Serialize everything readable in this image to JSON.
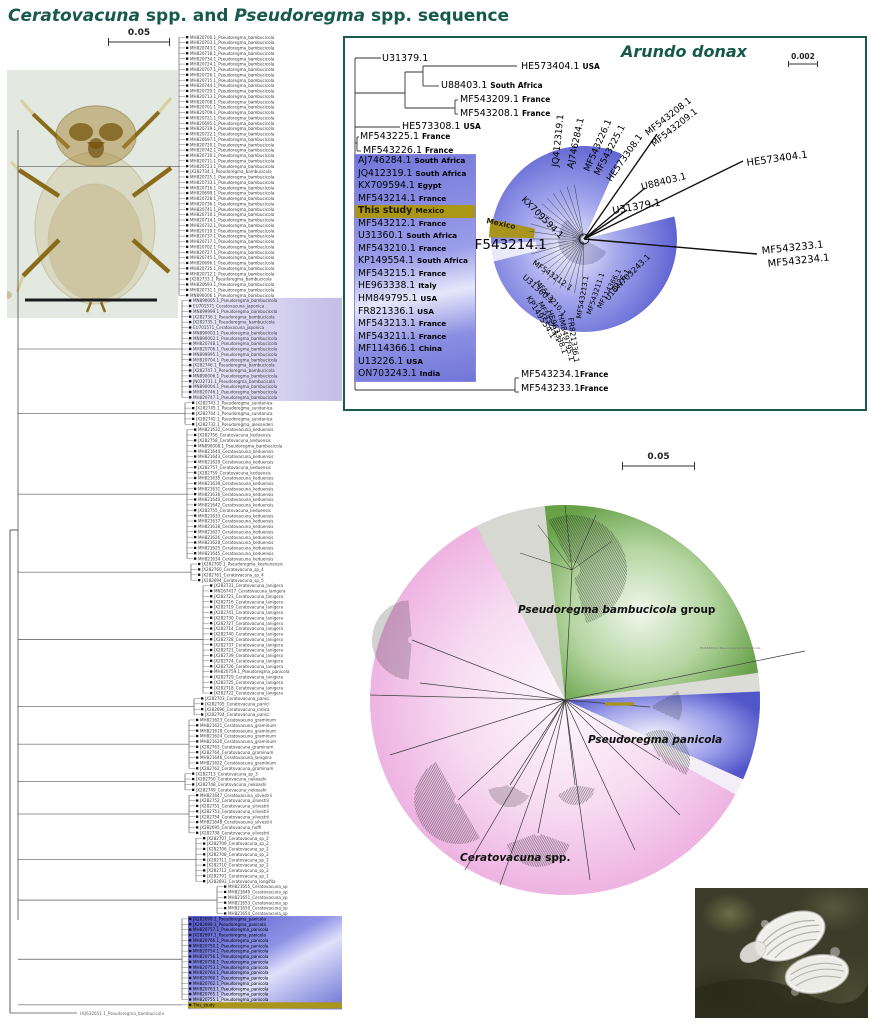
{
  "title": {
    "part1": "Ceratovacuna",
    "part2": " spp. and ",
    "part3": "Pseudoregma",
    "part4": " spp. sequence"
  },
  "colors": {
    "accent_teal": "#175a4c",
    "highlight_blue": "#5a5fd0",
    "highlight_olive": "#a9951b",
    "lavender": "#c7c1e6",
    "pink": "#f2c4e6",
    "green": "#6aa24c"
  },
  "main_tree": {
    "scale_label": "0.05",
    "outgroup": "HQ632651.1_Pseudoregma_bambucicola",
    "sections": [
      {
        "highlight": "none",
        "labels": [
          "MH820700.1_Pseudoregma_bambucicola",
          "MH820703.1_Pseudoregma_bambucicola",
          "MH820743.1_Pseudoregma_bambucicola",
          "MH820718.1_Pseudoregma_bambucicola",
          "MH820734.1_Pseudoregma_bambucicola",
          "MH820724.1_Pseudoregma_bambucicola",
          "MH820707.1_Pseudoregma_bambucicola",
          "MH820726.1_Pseudoregma_bambucicola",
          "MH820715.1_Pseudoregma_bambucicola",
          "MH820744.1_Pseudoregma_bambucicola",
          "MH820729.1_Pseudoregma_bambucicola",
          "MH820713.1_Pseudoregma_bambucicola",
          "MH820708.1_Pseudoregma_bambucicola",
          "MH820701.1_Pseudoregma_bambucicola",
          "MH820709.1_Pseudoregma_bambucicola",
          "MH820721.1_Pseudoregma_bambucicola",
          "MH820695.1_Pseudoregma_bambucicola",
          "MH820739.1_Pseudoregma_bambucicola",
          "MH820722.1_Pseudoregma_bambucicola",
          "MH820697.1_Pseudoregma_bambucicola",
          "MH820720.1_Pseudoregma_bambucicola",
          "MH820742.1_Pseudoregma_bambucicola",
          "MH820730.1_Pseudoregma_bambucicola",
          "MH820711.1_Pseudoregma_bambucicola",
          "MH820723.1_Pseudoregma_bambucicola",
          "JX282734.1_Pseudoregma_bambucicola",
          "MH820725.1_Pseudoregma_bambucicola",
          "MH820733.1_Pseudoregma_bambucicola",
          "MH820716.1_Pseudoregma_bambucicola",
          "MH820699.1_Pseudoregma_bambucicola",
          "MH820728.1_Pseudoregma_bambucicola",
          "MH820736.1_Pseudoregma_bambucicola",
          "MH820741.1_Pseudoregma_bambucicola",
          "MH820710.1_Pseudoregma_bambucicola",
          "MH820714.1_Pseudoregma_bambucicola",
          "MH820732.1_Pseudoregma_bambucicola",
          "MH820719.1_Pseudoregma_bambucicola",
          "MH820737.1_Pseudoregma_bambucicola",
          "MH820717.1_Pseudoregma_bambucicola",
          "MH820702.1_Pseudoregma_bambucicola",
          "MH820727.1_Pseudoregma_bambucicola",
          "MH820745.1_Pseudoregma_bambucicola",
          "MH820696.1_Pseudoregma_bambucicola",
          "MH820735.1_Pseudoregma_bambucicola",
          "MH820712.1_Pseudoregma_bambucicola",
          "JX282733.1_Pseudoregma_bambucicola",
          "MH820693.1_Pseudoregma_bambucicola",
          "MH820731.1_Pseudoregma_bambucicola",
          "MN890006.1_Pseudoregma_bambucicola"
        ]
      },
      {
        "highlight": "lavender",
        "labels": [
          "MN890005.1_Pseudoregma_bambucicola",
          "EU701571_Ceratovacuna_japonica",
          "MN899999.1_Pseudoregma_bambucicola",
          "JX282736.1_Pseudoregma_bambucicola",
          "JX282735.1_Pseudoregma_bambucicola",
          "EU701571_Ceratovacuna_japonica",
          "MN890003.1_Pseudoregma_bambucicola",
          "MN890002.1_Pseudoregma_bambucicola",
          "MH820748.1_Pseudoregma_bambucicola",
          "MH820706.1_Pseudoregma_bambucicola",
          "MN899995.1_Pseudoregma_bambucicola",
          "MH820704.1_Pseudoregma_bambucicola",
          "JX282746.1_Pseudoregma_bambucicola",
          "JX282747.1_Pseudoregma_bambucicola",
          "MN890006.1_Pseudoregma_bambucicola",
          "JN032731.1_Pseudoregma_bambucicola",
          "MN890004.1_Pseudoregma_bambucicola",
          "MH820746.1_Pseudoregma_bambucicola",
          "MH820747.1_Pseudoregma_bambucicola"
        ]
      },
      {
        "highlight": "none",
        "labels": [
          "JX282743.1_Pseudoregma_sundanica",
          "JX282745.1_Pseudoregma_sundanica",
          "JX282744.1_Pseudoregma_sundanica",
          "JX282742.1_Pseudoregma_sundanica",
          "JX282732.1_Pseudoregma_alexanderi"
        ]
      },
      {
        "highlight": "none",
        "labels": [
          "MH821632_Ceratovacuna_keduensis",
          "JX282756_Ceratovacuna_keduensis",
          "JX282758_Ceratovacuna_keduensis",
          "MN890008.1_Pseudoregma_bambucicola",
          "MH821644_Ceratovacuna_keduensis",
          "MH821643_Ceratovacuna_keduensis",
          "MH821629_Ceratovacuna_keduensis",
          "JX282757_Ceratovacuna_keduensis",
          "JX282759_Ceratovacuna_keduensis",
          "MH821635_Ceratovacuna_keduensis",
          "MH821639_Ceratovacuna_keduensis",
          "MH821631_Ceratovacuna_keduensis",
          "MH821636_Ceratovacuna_keduensis",
          "MH821640_Ceratovacuna_keduensis",
          "MH821642_Ceratovacuna_keduensis",
          "JX282755_Ceratovacuna_keduensis",
          "MH821633_Ceratovacuna_keduensis",
          "MH821637_Ceratovacuna_keduensis",
          "MH821638_Ceratovacuna_keduensis",
          "MH821627_Ceratovacuna_keduensis",
          "MH821626_Ceratovacuna_keduensis",
          "MH821628_Ceratovacuna_keduensis",
          "MH821625_Ceratovacuna_keduensis",
          "MH821645_Ceratovacuna_keduensis",
          "MH821634_Ceratovacuna_keduensis"
        ]
      },
      {
        "highlight": "none",
        "labels": [
          "JX282700.1_Pseudoregma_koshunensis",
          "JX282760_Ceratovacuna_sp_4",
          "JX282761_Ceratovacuna_sp_4",
          "JX282694_Ceratovacuna_sp_5"
        ]
      },
      {
        "highlight": "none",
        "labels": [
          "JX282731_Ceratovacuna_lanigera",
          "MN167417_Ceratovacuna_lanigera",
          "JX282723_Ceratovacuna_lanigera",
          "JX282716_Ceratovacuna_lanigera",
          "JX282719_Ceratovacuna_lanigera",
          "JX282741_Ceratovacuna_lanigera",
          "JX282730_Ceratovacuna_lanigera",
          "JX282727_Ceratovacuna_lanigera",
          "JX282714_Ceratovacuna_lanigera",
          "JX282740_Ceratovacuna_lanigera",
          "JX282728_Ceratovacuna_lanigera",
          "JX282737_Ceratovacuna_lanigera",
          "JX282721_Ceratovacuna_lanigera",
          "JX282739_Ceratovacuna_lanigera",
          "JX282724_Ceratovacuna_lanigera",
          "JX282726_Ceratovacuna_lanigera",
          "MH820759.1_Pseudoregma_panicola",
          "JX282729_Ceratovacuna_lanigera",
          "JX282725_Ceratovacuna_lanigera",
          "JX282718_Ceratovacuna_lanigera",
          "JX282722_Ceratovacuna_lanigera"
        ]
      },
      {
        "highlight": "none",
        "labels": [
          "JX282703_Ceratovacuna_panici",
          "JX282705_Ceratovacuna_panici",
          "JX282696_Ceratovacuna_indica",
          "JX282704_Ceratovacuna_panici"
        ]
      },
      {
        "highlight": "none",
        "labels": [
          "MH821623_Ceratovacuna_graminum",
          "MH821621_Ceratovacuna_graminum",
          "MH821618_Ceratovacuna_graminum",
          "MH821624_Ceratovacuna_graminum",
          "MH821620_Ceratovacuna_graminum",
          "JX282763_Ceratovacuna_graminum",
          "JX282764_Ceratovacuna_graminum",
          "MH821646_Ceratovacuna_lanigera",
          "MH821622_Ceratovacuna_graminum",
          "JX282762_Ceratovacuna_graminum"
        ]
      },
      {
        "highlight": "none",
        "labels": [
          "JX282713_Ceratovacuna_sp_3",
          "JX282750_Ceratovacuna_nekoashi",
          "JX282748_Ceratovacuna_nekoashi",
          "JX282749_Ceratovacuna_nekoashi"
        ]
      },
      {
        "highlight": "none",
        "labels": [
          "MH821647_Ceratovacuna_silvestrii",
          "JX282752_Ceratovacuna_silvestrii",
          "JX282751_Ceratovacuna_silvestrii",
          "JX282753_Ceratovacuna_silvestrii",
          "JX282754_Ceratovacuna_silvestrii",
          "MH821648_Ceratovacuna_silvestrii",
          "JX282695_Ceratovacuna_hoffi",
          "JX282738_Ceratovacuna_silvestrii"
        ]
      },
      {
        "highlight": "none",
        "labels": [
          "JX282707_Ceratovacuna_sp_2",
          "JX282709_Ceratovacuna_sp_2",
          "JX282706_Ceratovacuna_sp_2",
          "JX282708_Ceratovacuna_sp_2",
          "JX282711_Ceratovacuna_sp_2",
          "JX282710_Ceratovacuna_sp_2",
          "JX282712_Ceratovacuna_sp_2",
          "JX282701_Ceratovacuna_sp_1",
          "JX282693_Ceratovacuna_longifila"
        ]
      },
      {
        "highlight": "none",
        "labels": [
          "MH821655_Ceratovacuna_sp",
          "MH821649_Ceratovacuna_sp",
          "MH821651_Ceratovacuna_sp",
          "MH821653_Ceratovacuna_sp",
          "MH821650_Ceratovacuna_sp",
          "MH821654_Ceratovacuna_sp"
        ]
      },
      {
        "highlight": "blue",
        "labels": [
          "JX282699.1_Pseudoregma_panicola",
          "JX282698.1_Pseudoregma_panicola",
          "MH820757.1_Pseudoregma_panicola",
          "JX282697.1_Pseudoregma_panicola",
          "MH820766.1_Pseudoregma_panicola",
          "MH820750.1_Pseudoregma_panicola",
          "MH820754.1_Pseudoregma_panicola",
          "MH820756.1_Pseudoregma_panicola",
          "MH820758.1_Pseudoregma_panicola",
          "MH820753.1_Pseudoregma_panicola",
          "MH820764.1_Pseudoregma_panicola",
          "MH820760.1_Pseudoregma_panicola",
          "MH820762.1_Pseudoregma_panicola",
          "MH820763.1_Pseudoregma_panicola",
          "MH820765.1_Pseudoregma_panicola",
          "MH820755.1_Pseudoregma_panicola"
        ]
      },
      {
        "highlight": "olive",
        "labels": [
          "This_study"
        ]
      }
    ]
  },
  "inset": {
    "title": "Arundo donax",
    "scale_label": "0.002",
    "tree_top": [
      {
        "acc": "U31379.1",
        "country": ""
      },
      {
        "acc": "HE573404.1",
        "country": "USA"
      },
      {
        "acc": "U88403.1",
        "country": "South Africa"
      },
      {
        "acc": "MF543209.1",
        "country": "France"
      },
      {
        "acc": "MF543208.1",
        "country": "France"
      },
      {
        "acc": "HE573308.1",
        "country": "USA"
      },
      {
        "acc": "MF543225.1",
        "country": "France"
      },
      {
        "acc": "MF543226.1",
        "country": "France"
      }
    ],
    "highlight_list": [
      {
        "acc": "AJ746284.1",
        "country": "South Africa",
        "this_study": false
      },
      {
        "acc": "JQ412319.1",
        "country": "South Africa",
        "this_study": false
      },
      {
        "acc": "KX709594.1",
        "country": "Egypt",
        "this_study": false
      },
      {
        "acc": "MF543214.1",
        "country": "France",
        "this_study": false
      },
      {
        "acc": "This study",
        "country": "Mexico",
        "this_study": true
      },
      {
        "acc": "MF543212.1",
        "country": "France",
        "this_study": false
      },
      {
        "acc": "U31360.1",
        "country": "South Africa",
        "this_study": false
      },
      {
        "acc": "MF543210.1",
        "country": "France",
        "this_study": false
      },
      {
        "acc": "KP149554.1",
        "country": "South Africa",
        "this_study": false
      },
      {
        "acc": "MF543215.1",
        "country": "France",
        "this_study": false
      },
      {
        "acc": "HE963338.1",
        "country": "Italy",
        "this_study": false
      },
      {
        "acc": "HM849795.1",
        "country": "USA",
        "this_study": false
      },
      {
        "acc": "FR821336.1",
        "country": "USA",
        "this_study": false
      },
      {
        "acc": "MF543213.1",
        "country": "France",
        "this_study": false
      },
      {
        "acc": "MF543211.1",
        "country": "France",
        "this_study": false
      },
      {
        "acc": "MF114366.1",
        "country": "China",
        "this_study": false
      },
      {
        "acc": "U13226.1",
        "country": "USA",
        "this_study": false
      },
      {
        "acc": "ON703243.1",
        "country": "India",
        "this_study": false
      }
    ],
    "tree_bottom": [
      {
        "acc": "MF543234.1",
        "country": "France"
      },
      {
        "acc": "MF543233.1",
        "country": "France"
      }
    ],
    "fan_labels": [
      "MF543208.1",
      "MF543209.1",
      "HE573404.1",
      "U88403.1",
      "U31379.1",
      "MF543233.1",
      "MF543234.1",
      "HE573308.1",
      "MF543225.1",
      "MF543226.1",
      "AJ746284.1",
      "JQ412319.1",
      "KX709594.1",
      "Mexico",
      "MF543214.1",
      "MF543212.1",
      "U31360.1",
      "MF543210.1",
      "KP149554.1",
      "MF543215.1",
      "HE963338.1",
      "HM849795.1",
      "FR821336.1",
      "MF543213.1",
      "MF543211.1",
      "MF114366.1",
      "U13226.1",
      "ON703243.1"
    ]
  },
  "radial_tree": {
    "scale_label": "0.05",
    "groups": [
      {
        "italic": "Pseudoregma bambucicola",
        "roman": " group"
      },
      {
        "italic": "Pseudoregma panicola",
        "roman": ""
      },
      {
        "italic": "Ceratovacuna",
        "roman": " spp."
      }
    ],
    "outlier_label": "HQ632651.1 Pseudoregma bambucicola"
  }
}
